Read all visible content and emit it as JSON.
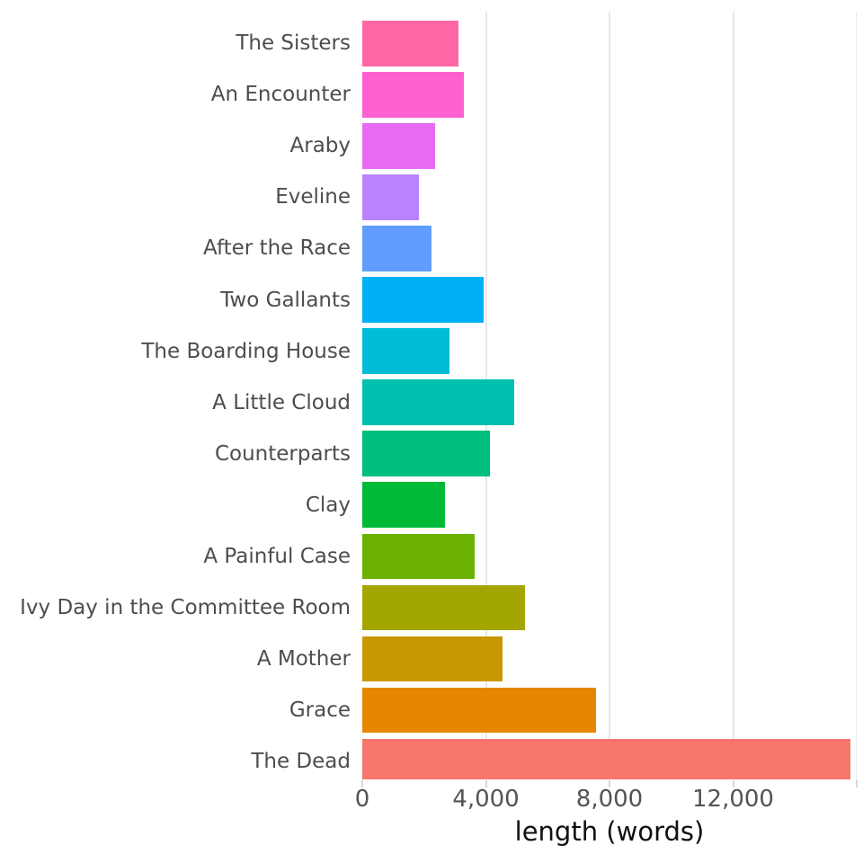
{
  "chart_data": {
    "type": "bar",
    "orientation": "horizontal",
    "title": "",
    "xlabel": "length (words)",
    "ylabel": "",
    "grid": true,
    "legend": false,
    "categories": [
      "The Sisters",
      "An Encounter",
      "Araby",
      "Eveline",
      "After the Race",
      "Two Gallants",
      "The Boarding House",
      "A Little Cloud",
      "Counterparts",
      "Clay",
      "A Painful Case",
      "Ivy Day in the Committee Room",
      "A Mother",
      "Grace",
      "The Dead"
    ],
    "values": [
      3110,
      3280,
      2360,
      1830,
      2240,
      3940,
      2830,
      4930,
      4130,
      2670,
      3640,
      5270,
      4540,
      7560,
      15800
    ],
    "bar_colors": [
      "#FF67A4",
      "#FD61D1",
      "#E76BF3",
      "#B983FF",
      "#619CFF",
      "#00B0F6",
      "#00BCD8",
      "#00C0AF",
      "#00BF7D",
      "#00BA38",
      "#6BB100",
      "#A3A500",
      "#C99800",
      "#E58700",
      "#F8766D"
    ],
    "x_axis": {
      "range": [
        0,
        16000
      ],
      "ticks": [
        {
          "value": 0,
          "label": "0"
        },
        {
          "value": 4000,
          "label": "4,000"
        },
        {
          "value": 8000,
          "label": "8,000"
        },
        {
          "value": 12000,
          "label": "12,000"
        },
        {
          "value": 16000,
          "label": ""
        }
      ],
      "gridline_values": [
        4000,
        8000,
        12000,
        16000
      ]
    },
    "style_colors": {
      "background": "#ffffff",
      "gridline": "#e8e8e8",
      "tick_mark": "#d6d6d6",
      "tick_label": "#545454",
      "category_label": "#4d4d4d",
      "axis_title": "#111111"
    }
  }
}
